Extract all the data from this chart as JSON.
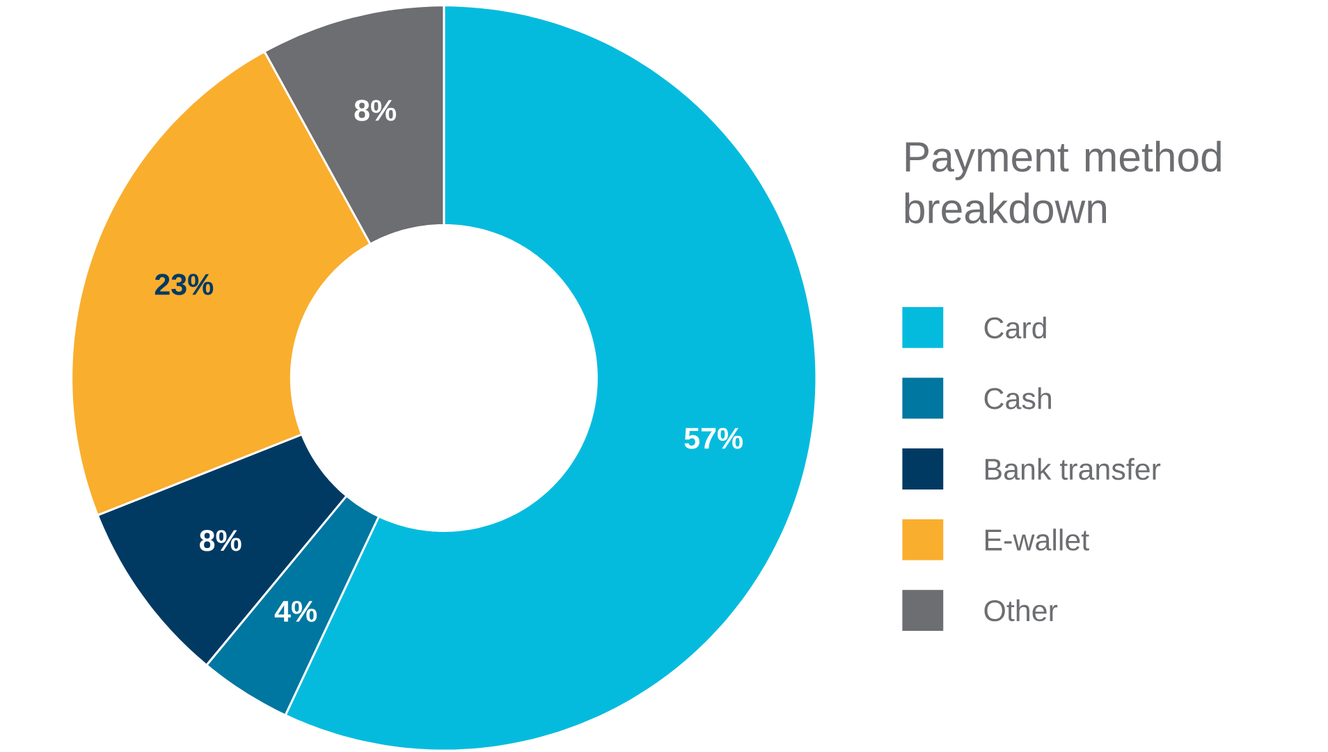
{
  "chart_data": {
    "type": "donut",
    "legend_title": "Payment method breakdown",
    "categories": [
      "Card",
      "Cash",
      "Bank transfer",
      "E-wallet",
      "Other"
    ],
    "values": [
      57,
      4,
      8,
      23,
      8
    ],
    "value_labels": [
      "57%",
      "4%",
      "8%",
      "23%",
      "8%"
    ],
    "colors": [
      "#05bbdd",
      "#0077a0",
      "#003a63",
      "#f9ae2e",
      "#6d6e71"
    ],
    "legend": "right"
  }
}
